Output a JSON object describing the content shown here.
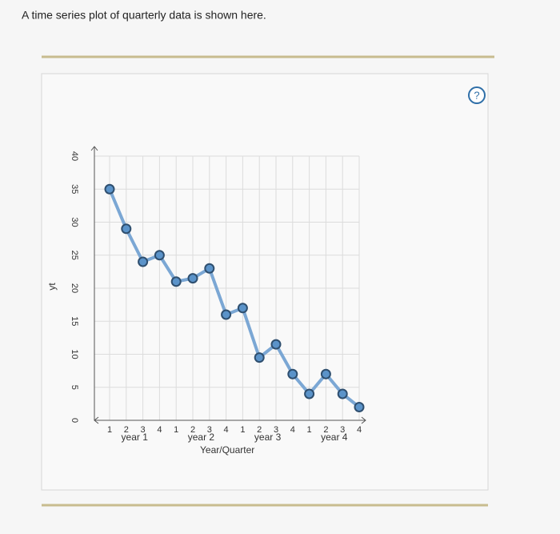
{
  "prompt": "A time series plot of quarterly data is shown here.",
  "help": "?",
  "chart_data": {
    "type": "line",
    "xlabel": "Year/Quarter",
    "ylabel": "yt",
    "categories": [
      "1",
      "2",
      "3",
      "4",
      "1",
      "2",
      "3",
      "4",
      "1",
      "2",
      "3",
      "4",
      "1",
      "2",
      "3",
      "4"
    ],
    "year_labels": [
      "year 1",
      "year 2",
      "year 3",
      "year 4"
    ],
    "values": [
      35,
      29,
      24,
      25,
      21,
      21.5,
      23,
      16,
      17,
      9.5,
      11.5,
      7,
      4,
      7,
      4,
      2
    ],
    "color": "#7ba7d4",
    "marker_color": "#5b93c9",
    "ylim": [
      0,
      40
    ],
    "yticks": [
      0,
      5,
      10,
      15,
      20,
      25,
      30,
      35,
      40
    ],
    "grid": true
  }
}
